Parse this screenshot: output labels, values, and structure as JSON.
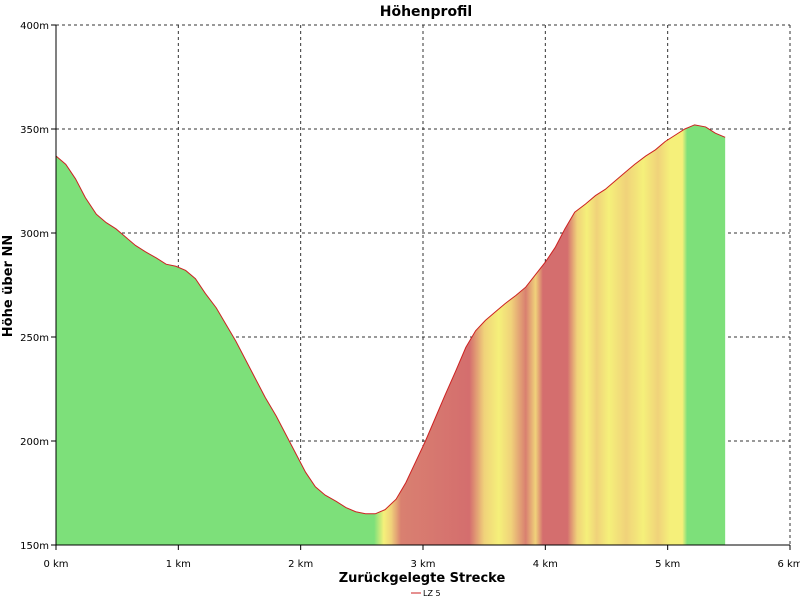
{
  "chart_data": {
    "type": "area",
    "title": "Höhenprofil",
    "xlabel": "Zurückgelegte Strecke",
    "ylabel": "Höhe über NN",
    "xlim": [
      0,
      6
    ],
    "ylim": [
      150,
      400
    ],
    "xticks": [
      {
        "value": 0,
        "label": "0 km"
      },
      {
        "value": 1,
        "label": "1 km"
      },
      {
        "value": 2,
        "label": "2 km"
      },
      {
        "value": 3,
        "label": "3 km"
      },
      {
        "value": 4,
        "label": "4 km"
      },
      {
        "value": 5,
        "label": "5 km"
      },
      {
        "value": 6,
        "label": "6 km"
      }
    ],
    "yticks": [
      {
        "value": 150,
        "label": "150m"
      },
      {
        "value": 200,
        "label": "200m"
      },
      {
        "value": 250,
        "label": "250m"
      },
      {
        "value": 300,
        "label": "300m"
      },
      {
        "value": 350,
        "label": "350m"
      },
      {
        "value": 400,
        "label": "400m"
      }
    ],
    "grid": true,
    "legend_position": "bottom-center",
    "series": [
      {
        "name": "LZ 5",
        "color": "#cc2222",
        "x": [
          0.0,
          0.08,
          0.16,
          0.24,
          0.33,
          0.41,
          0.49,
          0.57,
          0.65,
          0.73,
          0.82,
          0.9,
          0.98,
          1.06,
          1.14,
          1.22,
          1.31,
          1.39,
          1.47,
          1.55,
          1.63,
          1.71,
          1.8,
          1.88,
          1.96,
          2.04,
          2.12,
          2.2,
          2.29,
          2.37,
          2.45,
          2.53,
          2.61,
          2.69,
          2.78,
          2.86,
          2.94,
          3.02,
          3.1,
          3.18,
          3.27,
          3.35,
          3.43,
          3.51,
          3.59,
          3.67,
          3.76,
          3.84,
          3.92,
          4.0,
          4.08,
          4.16,
          4.24,
          4.33,
          4.41,
          4.49,
          4.57,
          4.65,
          4.73,
          4.82,
          4.9,
          4.98,
          5.06,
          5.14,
          5.22,
          5.31,
          5.39,
          5.47
        ],
        "y": [
          337,
          333,
          326,
          317,
          309,
          305,
          302,
          298,
          294,
          291,
          288,
          285,
          284,
          282,
          278,
          271,
          264,
          256,
          248,
          239,
          230,
          221,
          212,
          203,
          194,
          185,
          178,
          174,
          171,
          168,
          166,
          165,
          165,
          167,
          172,
          180,
          190,
          200,
          211,
          222,
          234,
          245,
          253,
          258,
          262,
          266,
          270,
          274,
          280,
          286,
          293,
          302,
          310,
          314,
          318,
          321,
          325,
          329,
          333,
          337,
          340,
          344,
          347,
          350,
          352,
          351,
          348,
          346
        ]
      }
    ],
    "gradient_zones": [
      {
        "x": 0.0,
        "color": "#7de07a"
      },
      {
        "x": 2.6,
        "color": "#7de07a"
      },
      {
        "x": 2.68,
        "color": "#f5f07a"
      },
      {
        "x": 2.74,
        "color": "#f0d27a"
      },
      {
        "x": 2.82,
        "color": "#d98070"
      },
      {
        "x": 3.38,
        "color": "#d46e6e"
      },
      {
        "x": 3.5,
        "color": "#f0d27a"
      },
      {
        "x": 3.62,
        "color": "#f5f07a"
      },
      {
        "x": 3.72,
        "color": "#f0d27a"
      },
      {
        "x": 3.84,
        "color": "#d98070"
      },
      {
        "x": 3.92,
        "color": "#f0d27a"
      },
      {
        "x": 3.98,
        "color": "#d46e6e"
      },
      {
        "x": 4.18,
        "color": "#d46e6e"
      },
      {
        "x": 4.26,
        "color": "#f0d27a"
      },
      {
        "x": 4.34,
        "color": "#f5f07a"
      },
      {
        "x": 4.42,
        "color": "#f0d27a"
      },
      {
        "x": 4.52,
        "color": "#f5f07a"
      },
      {
        "x": 4.66,
        "color": "#f0d27a"
      },
      {
        "x": 4.8,
        "color": "#f5f07a"
      },
      {
        "x": 4.92,
        "color": "#f0d27a"
      },
      {
        "x": 5.02,
        "color": "#f5f07a"
      },
      {
        "x": 5.12,
        "color": "#f5f07a"
      },
      {
        "x": 5.16,
        "color": "#7de07a"
      },
      {
        "x": 5.47,
        "color": "#7de07a"
      }
    ]
  }
}
